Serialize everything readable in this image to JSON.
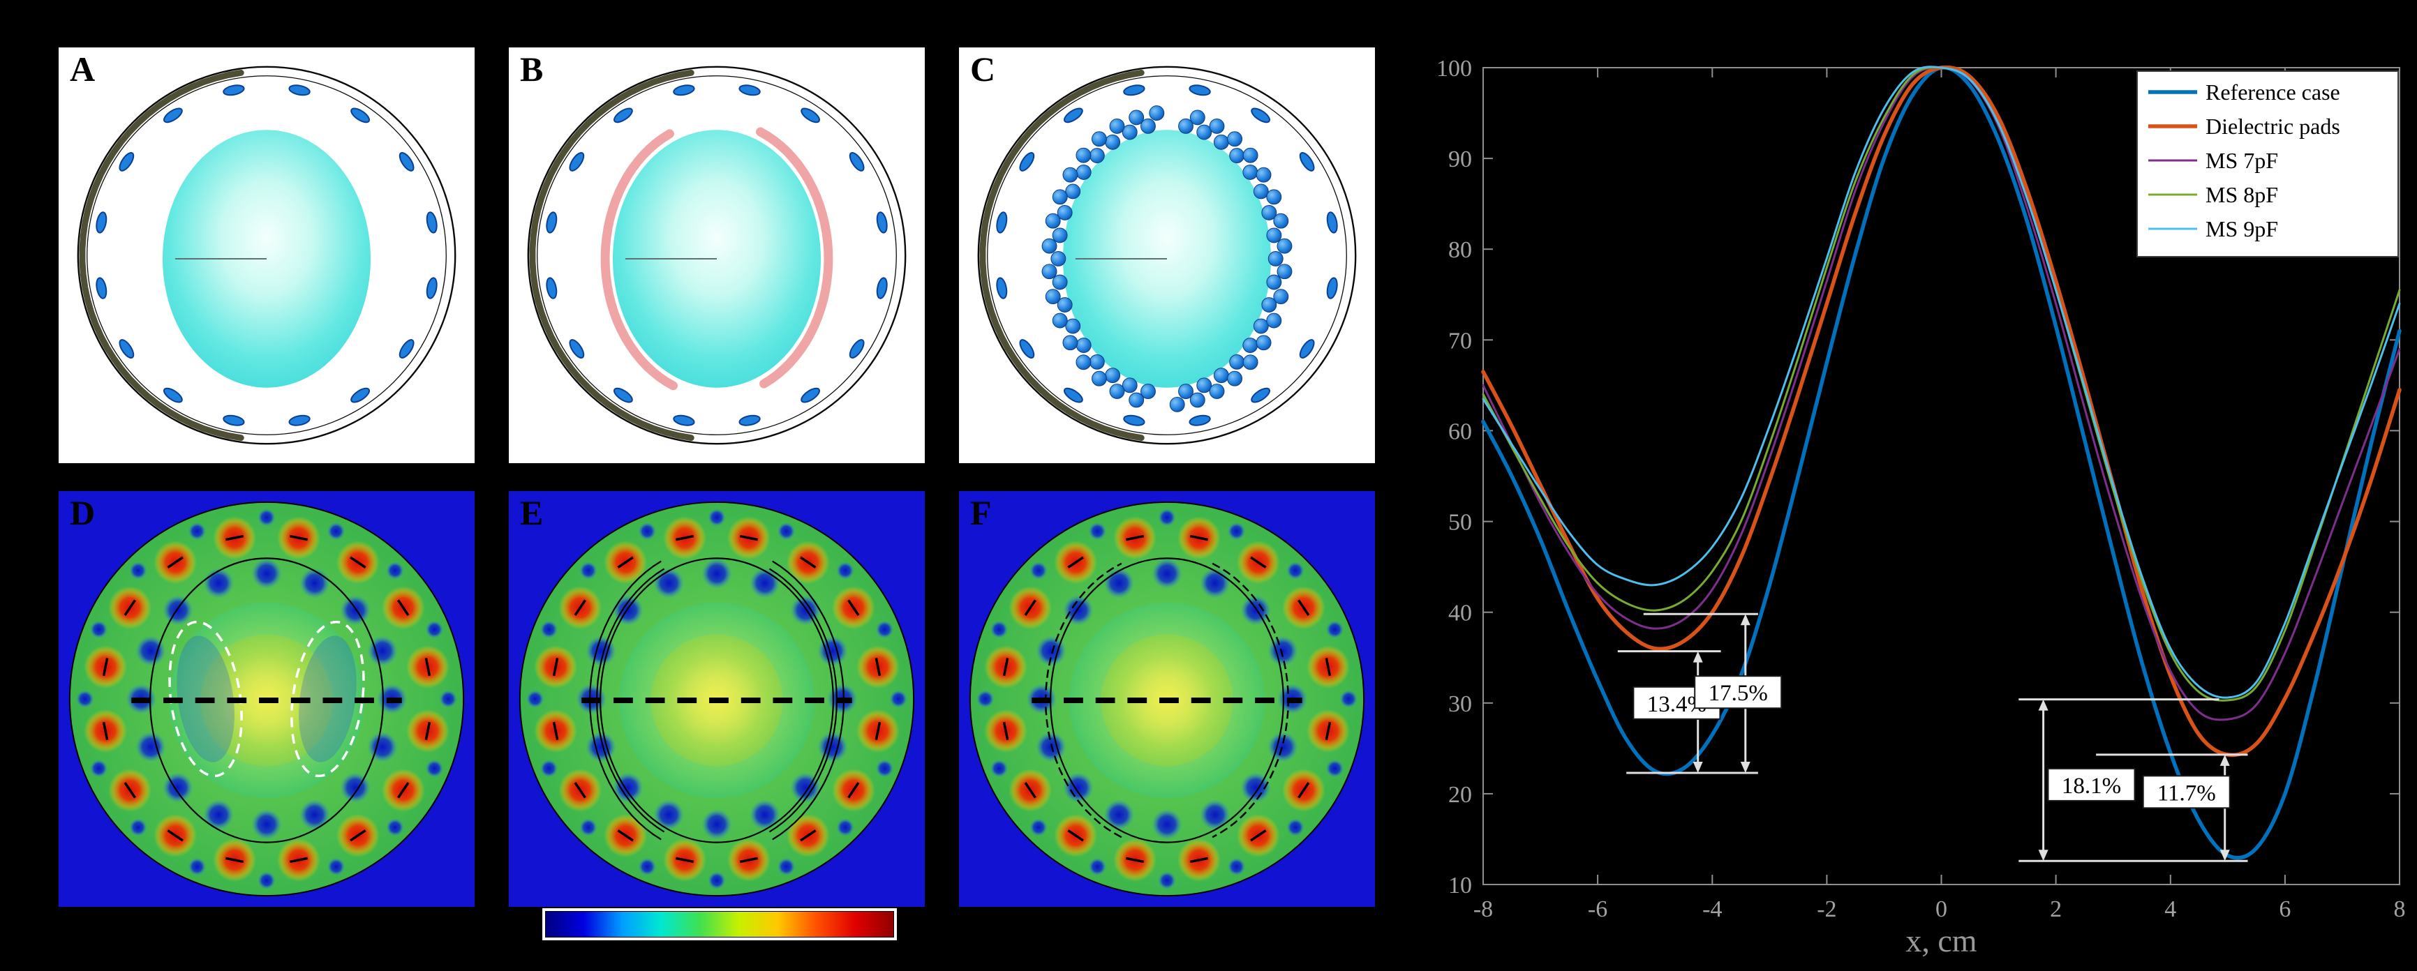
{
  "figure": {
    "background": "#000000",
    "panels": [
      {
        "label": "A",
        "type": "coil-model",
        "variant": "reference"
      },
      {
        "label": "B",
        "type": "coil-model",
        "variant": "dielectric-pads"
      },
      {
        "label": "C",
        "type": "coil-model",
        "variant": "metasurface"
      },
      {
        "label": "D",
        "type": "field-map",
        "variant": "reference"
      },
      {
        "label": "E",
        "type": "field-map",
        "variant": "dielectric-pads"
      },
      {
        "label": "F",
        "type": "field-map",
        "variant": "metasurface"
      }
    ],
    "colorbar": {
      "colors": [
        "#00007f",
        "#0000e0",
        "#009fff",
        "#00e8d0",
        "#40e050",
        "#c8f000",
        "#ffc800",
        "#ff5000",
        "#e00000",
        "#900000"
      ]
    }
  },
  "chart_data": {
    "type": "line",
    "title": "",
    "xlabel": "x, cm",
    "ylabel": "",
    "xlim": [
      -8,
      8
    ],
    "ylim": [
      10,
      100
    ],
    "xticks": [
      -8,
      -6,
      -4,
      -2,
      0,
      2,
      4,
      6,
      8
    ],
    "yticks": [
      10,
      20,
      30,
      40,
      50,
      60,
      70,
      80,
      90,
      100
    ],
    "grid": false,
    "legend_position": "top-right",
    "x": [
      -8,
      -7.5,
      -7,
      -6.5,
      -6,
      -5.5,
      -5,
      -4.5,
      -4,
      -3.5,
      -3,
      -2.5,
      -2,
      -1.5,
      -1,
      -0.5,
      0,
      0.5,
      1,
      1.5,
      2,
      2.5,
      3,
      3.5,
      4,
      4.5,
      5,
      5.5,
      6,
      6.5,
      7,
      7.5,
      8
    ],
    "series": [
      {
        "name": "Reference case",
        "color": "#0072bd",
        "line_width": 5.5,
        "values": [
          61,
          55,
          48,
          40,
          32.5,
          26,
          22.5,
          22.8,
          26.5,
          33,
          43,
          55,
          67.5,
          79.5,
          90,
          97,
          100,
          98,
          92,
          83,
          71.5,
          59,
          46.5,
          34.5,
          24.5,
          17,
          13.2,
          14,
          20,
          31.5,
          45,
          58.5,
          71
        ]
      },
      {
        "name": "Dielectric pads",
        "color": "#d95319",
        "line_width": 5.5,
        "values": [
          66.5,
          60.5,
          54,
          47.5,
          41.5,
          37.8,
          36,
          36.8,
          40,
          46,
          54.5,
          64,
          74,
          84,
          92.5,
          98.2,
          100,
          99,
          94.5,
          86.5,
          76.5,
          65.5,
          54,
          42.5,
          33,
          26.5,
          24.3,
          25.5,
          30.5,
          37.5,
          45.5,
          54.5,
          64.5
        ]
      },
      {
        "name": "MS 7pF",
        "color": "#7e2f8e",
        "line_width": 3,
        "values": [
          65,
          58.5,
          52,
          46.5,
          42,
          39.3,
          38.2,
          39.2,
          42.5,
          48.5,
          57,
          66.5,
          76.5,
          86.5,
          94,
          99,
          100,
          98.6,
          93.5,
          84.5,
          74,
          62.5,
          51.5,
          41.5,
          33.5,
          29,
          28.2,
          29.8,
          35.5,
          43.5,
          52,
          60.5,
          69
        ]
      },
      {
        "name": "MS 8pF",
        "color": "#77ac30",
        "line_width": 3,
        "values": [
          64,
          58.2,
          52.5,
          47.2,
          43.2,
          41,
          40.2,
          41.3,
          44.5,
          50,
          58.5,
          68,
          78,
          87.5,
          94.5,
          99.2,
          100,
          98.7,
          93.8,
          85.5,
          75.5,
          64.5,
          53.5,
          43.5,
          35.5,
          31.2,
          30.3,
          31.8,
          38,
          47,
          56.5,
          66,
          75.5
        ]
      },
      {
        "name": "MS 9pF",
        "color": "#4dbeee",
        "line_width": 3,
        "values": [
          63.5,
          58.5,
          53.5,
          48.8,
          45.2,
          43.6,
          43,
          44.2,
          47.2,
          52.5,
          60.5,
          69.5,
          79,
          88.5,
          95.5,
          99.5,
          100,
          98.7,
          93.8,
          85.5,
          75.5,
          64.8,
          54,
          44,
          36,
          31.8,
          30.6,
          32.3,
          38.8,
          47.5,
          56.3,
          65,
          74
        ]
      }
    ],
    "annotations": {
      "hlines": [
        {
          "y": 39.8,
          "x1": -5.2,
          "x2": -3.2
        },
        {
          "y": 35.7,
          "x1": -5.65,
          "x2": -3.85
        },
        {
          "y": 22.3,
          "x1": -5.5,
          "x2": -3.2
        },
        {
          "y": 30.4,
          "x1": 1.35,
          "x2": 4.85
        },
        {
          "y": 24.3,
          "x1": 2.7,
          "x2": 5.35
        },
        {
          "y": 12.6,
          "x1": 1.35,
          "x2": 5.35
        }
      ],
      "measures": [
        {
          "label": "13.4%",
          "x": -4.25,
          "y1": 35.7,
          "y2": 22.3,
          "box_x": -4.62,
          "box_y": 30.0
        },
        {
          "label": "17.5%",
          "x": -3.42,
          "y1": 39.8,
          "y2": 22.3,
          "box_x": -3.55,
          "box_y": 31.2
        },
        {
          "label": "18.1%",
          "x": 1.78,
          "y1": 30.4,
          "y2": 12.6,
          "box_x": 2.62,
          "box_y": 21.0
        },
        {
          "label": "11.7%",
          "x": 4.95,
          "y1": 24.3,
          "y2": 12.6,
          "box_x": 4.28,
          "box_y": 20.2
        }
      ]
    }
  }
}
